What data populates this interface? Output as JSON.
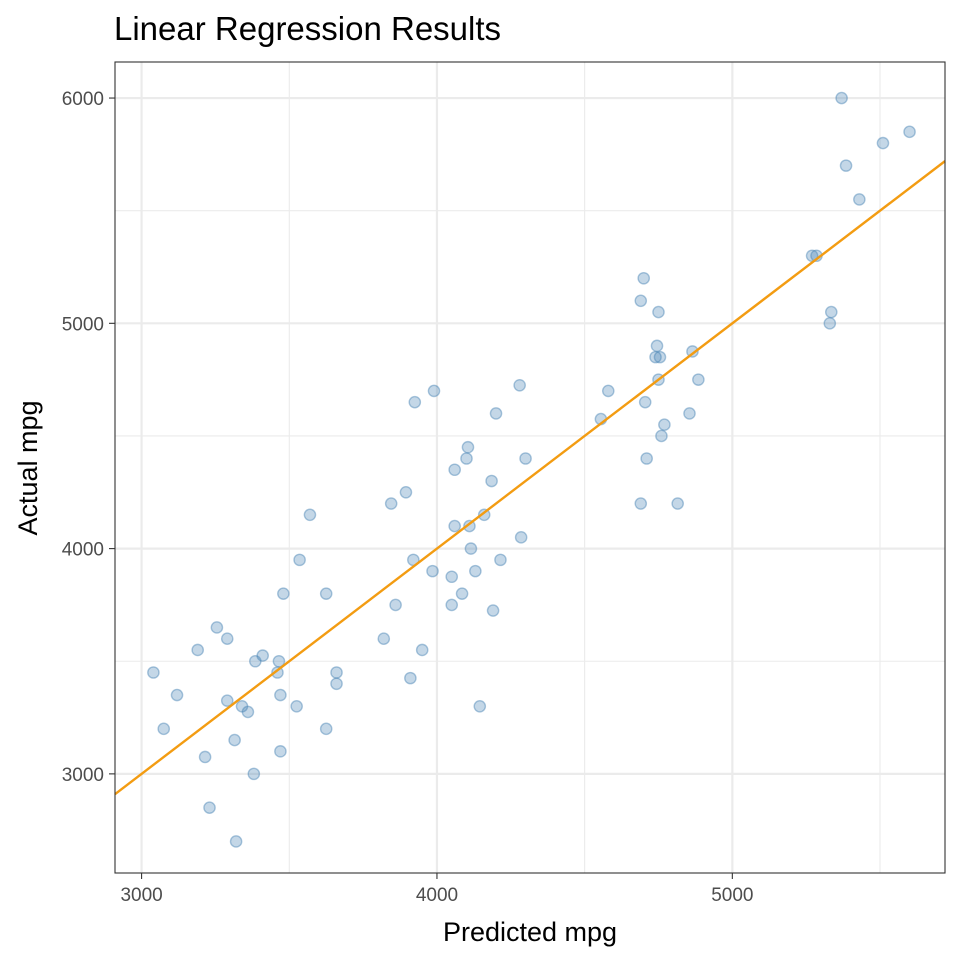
{
  "chart_data": {
    "type": "scatter",
    "title": "Linear Regression Results",
    "xlabel": "Predicted mpg",
    "ylabel": "Actual mpg",
    "xlim": [
      2910,
      5720
    ],
    "ylim": [
      2560,
      6160
    ],
    "x_ticks": [
      3000,
      4000,
      5000
    ],
    "y_ticks": [
      3000,
      4000,
      5000,
      6000
    ],
    "x_tick_labels": [
      "3000",
      "4000",
      "5000"
    ],
    "y_tick_labels": [
      "3000",
      "4000",
      "5000",
      "6000"
    ],
    "x_minor": [
      3500,
      4500,
      5500
    ],
    "y_minor": [
      3500,
      4500,
      5500
    ],
    "grid": true,
    "point_color": "#4682b4",
    "line_color": "#f39c12",
    "reference_line": {
      "slope": 1,
      "intercept": 0
    },
    "points": [
      [
        3040,
        3450
      ],
      [
        3075,
        3200
      ],
      [
        3120,
        3350
      ],
      [
        3190,
        3550
      ],
      [
        3215,
        3075
      ],
      [
        3230,
        2850
      ],
      [
        3255,
        3650
      ],
      [
        3290,
        3600
      ],
      [
        3290,
        3325
      ],
      [
        3315,
        3150
      ],
      [
        3320,
        2700
      ],
      [
        3340,
        3300
      ],
      [
        3360,
        3275
      ],
      [
        3380,
        3000
      ],
      [
        3385,
        3500
      ],
      [
        3410,
        3525
      ],
      [
        3465,
        3500
      ],
      [
        3460,
        3450
      ],
      [
        3470,
        3350
      ],
      [
        3470,
        3100
      ],
      [
        3480,
        3800
      ],
      [
        3525,
        3300
      ],
      [
        3535,
        3950
      ],
      [
        3570,
        4150
      ],
      [
        3625,
        3800
      ],
      [
        3625,
        3200
      ],
      [
        3660,
        3450
      ],
      [
        3660,
        3400
      ],
      [
        3820,
        3600
      ],
      [
        3845,
        4200
      ],
      [
        3860,
        3750
      ],
      [
        3895,
        4250
      ],
      [
        3910,
        3425
      ],
      [
        3920,
        3950
      ],
      [
        3925,
        4650
      ],
      [
        3950,
        3550
      ],
      [
        3985,
        3900
      ],
      [
        3990,
        4700
      ],
      [
        4050,
        3875
      ],
      [
        4050,
        3750
      ],
      [
        4060,
        4350
      ],
      [
        4060,
        4100
      ],
      [
        4085,
        3800
      ],
      [
        4100,
        4400
      ],
      [
        4105,
        4450
      ],
      [
        4110,
        4100
      ],
      [
        4115,
        4000
      ],
      [
        4130,
        3900
      ],
      [
        4145,
        3300
      ],
      [
        4160,
        4150
      ],
      [
        4185,
        4300
      ],
      [
        4190,
        3725
      ],
      [
        4200,
        4600
      ],
      [
        4215,
        3950
      ],
      [
        4280,
        4725
      ],
      [
        4285,
        4050
      ],
      [
        4300,
        4400
      ],
      [
        4555,
        4575
      ],
      [
        4580,
        4700
      ],
      [
        4690,
        4200
      ],
      [
        4690,
        5100
      ],
      [
        4700,
        5200
      ],
      [
        4705,
        4650
      ],
      [
        4710,
        4400
      ],
      [
        4740,
        4850
      ],
      [
        4745,
        4900
      ],
      [
        4750,
        5050
      ],
      [
        4750,
        4750
      ],
      [
        4755,
        4850
      ],
      [
        4760,
        4500
      ],
      [
        4770,
        4550
      ],
      [
        4815,
        4200
      ],
      [
        4855,
        4600
      ],
      [
        4865,
        4875
      ],
      [
        4885,
        4750
      ],
      [
        5270,
        5300
      ],
      [
        5285,
        5300
      ],
      [
        5330,
        5000
      ],
      [
        5335,
        5050
      ],
      [
        5370,
        6000
      ],
      [
        5385,
        5700
      ],
      [
        5430,
        5550
      ],
      [
        5510,
        5800
      ],
      [
        5600,
        5850
      ]
    ]
  }
}
